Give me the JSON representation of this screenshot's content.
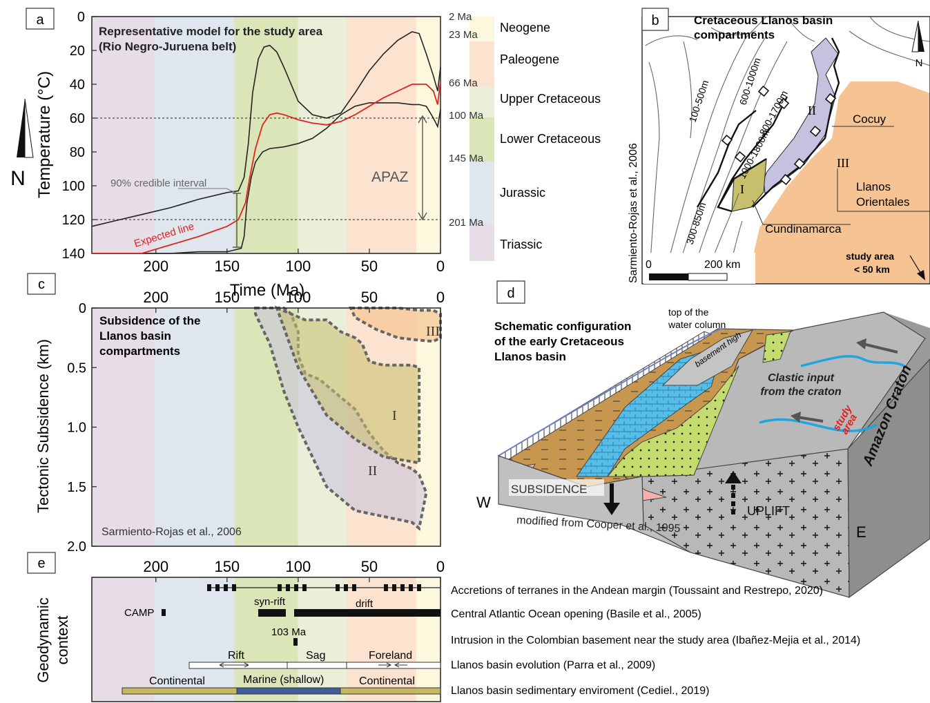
{
  "colors": {
    "triassic": "#e6dde6",
    "jurassic": "#dfe6ee",
    "lower_cretaceous": "#dbe6b8",
    "upper_cretaceous": "#e9efd9",
    "paleogene": "#fbe3cf",
    "neogene": "#fbf8de",
    "expected_line": "#e02222",
    "sandy_orange": "#f6c493",
    "purple_zone": "#c6c1de",
    "olive_zone": "#c8bf6c",
    "continental_bar": "#c7b761",
    "marine_bar": "#3f5f9a",
    "river_blue": "#1fa6e0",
    "block_grey": "#b4b4b4"
  },
  "panel_a": {
    "letter": "a",
    "title": "Representative model for the study area",
    "subtitle": "(Rio Negro-Juruena belt)",
    "ylabel": "Temperature (°C)",
    "xlabel": "Time (Ma)",
    "credible_label": "90% credible interval",
    "expected_label": "Expected line",
    "apaz_label": "APAZ",
    "north_label": "N"
  },
  "timescale": {
    "periods": [
      "Neogene",
      "Paleogene",
      "Upper Cretaceous",
      "Lower Cretaceous",
      "Jurassic",
      "Triassic"
    ],
    "ages": [
      "2 Ma",
      "23 Ma",
      "66 Ma",
      "100 Ma",
      "145 Ma",
      "201 Ma"
    ]
  },
  "panel_b": {
    "letter": "b",
    "title_line1": "Cretaceous Llanos basin",
    "title_line2": "compartments",
    "north_label": "N",
    "depth_labels": [
      "100-500m",
      "600-1000m",
      "800-1700m",
      "1000-1800m",
      "300-850m"
    ],
    "roman_1": "I",
    "roman_2": "II",
    "roman_3": "III",
    "cocuy": "Cocuy",
    "llanos_line1": "Llanos",
    "llanos_line2": "Orientales",
    "cundinamarca": "Cundinamarca",
    "scale_zero": "0",
    "scale_max": "200 km",
    "study_line1": "study area",
    "study_line2": "< 50 km",
    "source": "Sarmiento-Rojas et al., 2006"
  },
  "panel_c": {
    "letter": "c",
    "title_line1": "Subsidence of the",
    "title_line2": "Llanos basin",
    "title_line3": "compartments",
    "ylabel": "Tectonic Subsidence (km)",
    "source": "Sarmiento-Rojas et al., 2006",
    "zone_labels": [
      "I",
      "II",
      "III"
    ]
  },
  "panel_d": {
    "letter": "d",
    "title_line1": "Schematic configuration",
    "title_line2": "of the early Cretaceous",
    "title_line3": "Llanos basin",
    "water_line1": "top of the",
    "water_line2": "water column",
    "basement_high": "basement high",
    "clastic_line1": "Clastic input",
    "clastic_line2": "from the craton",
    "study_line1": "study",
    "study_line2": "area",
    "craton": "Amazon Craton",
    "subsidence": "SUBSIDENCE",
    "uplift": "UPLIFT",
    "west": "W",
    "east": "E",
    "source": "modified from Cooper et al., 1995"
  },
  "panel_e": {
    "letter": "e",
    "ylabel_line1": "Geodynamic",
    "ylabel_line2": "context",
    "camp": "CAMP",
    "synrift": "syn-rift",
    "drift": "drift",
    "age_103": "103 Ma",
    "rift": "Rift",
    "sag": "Sag",
    "foreland": "Foreland",
    "continental": "Continental",
    "marine": "Marine (shallow)",
    "rows": [
      "Accretions of terranes in the Andean margin (Toussaint and Restrepo, 2020)",
      "Central Atlantic Ocean opening (Basile et al., 2005)",
      "Intrusion in the Colombian basement near the study area (Ibañez-Mejia et al., 2014)",
      "Llanos basin evolution (Parra et al., 2009)",
      "Llanos basin sedimentary enviroment (Cediel., 2019)"
    ]
  },
  "chart_data": [
    {
      "type": "line",
      "panel": "a",
      "title": "Representative model for the study area (Rio Negro-Juruena belt)",
      "xlabel": "Time (Ma)",
      "ylabel": "Temperature (°C)",
      "xlim": [
        245,
        0
      ],
      "ylim": [
        140,
        0
      ],
      "x_ticks": [
        200,
        150,
        100,
        50,
        0
      ],
      "y_ticks": [
        0,
        20,
        40,
        60,
        80,
        100,
        120,
        140
      ],
      "apaz_bounds": [
        60,
        120
      ],
      "series": [
        {
          "name": "Expected line",
          "x": [
            245,
            230,
            210,
            190,
            170,
            150,
            142,
            137,
            134,
            130,
            125,
            120,
            115,
            110,
            100,
            90,
            80,
            70,
            60,
            50,
            40,
            30,
            20,
            10,
            5,
            2,
            0
          ],
          "y": [
            149,
            145,
            140,
            135,
            130,
            124,
            120,
            110,
            95,
            78,
            64,
            58,
            57,
            58,
            61,
            63,
            64,
            62,
            58,
            53,
            48,
            44,
            40,
            40,
            44,
            52,
            38
          ]
        },
        {
          "name": "upper bound",
          "x": [
            245,
            230,
            210,
            190,
            170,
            150,
            142,
            138,
            135,
            132,
            128,
            124,
            120,
            115,
            110,
            100,
            90,
            80,
            70,
            60,
            50,
            40,
            30,
            20,
            15,
            10,
            5,
            2,
            0
          ],
          "y": [
            124,
            121,
            117,
            113,
            108,
            104,
            103,
            95,
            75,
            45,
            25,
            18,
            17,
            21,
            30,
            50,
            58,
            60,
            57,
            45,
            32,
            22,
            14,
            9,
            10,
            22,
            35,
            44,
            30
          ]
        },
        {
          "name": "lower bound",
          "x": [
            245,
            230,
            210,
            190,
            170,
            150,
            145,
            140,
            138,
            136,
            133,
            130,
            125,
            120,
            110,
            100,
            90,
            80,
            70,
            60,
            50,
            40,
            30,
            20,
            15,
            10,
            5,
            2,
            0
          ],
          "y": [
            141,
            141,
            140,
            140,
            139,
            139,
            138,
            137,
            130,
            110,
            95,
            86,
            80,
            78,
            77,
            75,
            72,
            66,
            58,
            53,
            51,
            51,
            51,
            52,
            52,
            53,
            60,
            65,
            55
          ]
        }
      ]
    },
    {
      "type": "area",
      "panel": "c",
      "title": "Subsidence of the Llanos basin compartments",
      "ylabel": "Tectonic Subsidence (km)",
      "xlim": [
        245,
        0
      ],
      "ylim": [
        2.0,
        0
      ],
      "x_ticks": [
        200,
        150,
        100,
        50,
        0
      ],
      "y_ticks": [
        0,
        0.5,
        1.0,
        1.5,
        2.0
      ],
      "series": [
        {
          "name": "I",
          "x": [
            115,
            105,
            95,
            80,
            70,
            60,
            55,
            50,
            40,
            30,
            20,
            15,
            15,
            40,
            60,
            70,
            80,
            100
          ],
          "y": [
            0,
            0.05,
            0.1,
            0.1,
            0.2,
            0.25,
            0.3,
            0.45,
            0.48,
            0.48,
            0.48,
            0.5,
            1.3,
            1.25,
            1.1,
            1.0,
            0.9,
            0.5
          ]
        },
        {
          "name": "II",
          "x": [
            130,
            110,
            105,
            100,
            100,
            95,
            85,
            80,
            70,
            60,
            50,
            40,
            30,
            20,
            15,
            10,
            15,
            20,
            40,
            60,
            80,
            100,
            110,
            120,
            130
          ],
          "y": [
            0,
            0,
            0.05,
            0.2,
            0.4,
            0.55,
            0.6,
            0.65,
            0.75,
            0.85,
            1.05,
            1.2,
            1.3,
            1.35,
            1.4,
            1.55,
            1.85,
            1.8,
            1.75,
            1.7,
            1.5,
            1.0,
            0.7,
            0.3,
            0.05
          ]
        },
        {
          "name": "III",
          "x": [
            63,
            55,
            40,
            30,
            15,
            5,
            0,
            0,
            5,
            15,
            30,
            45,
            60
          ],
          "y": [
            0,
            0,
            0,
            0,
            0.02,
            0.02,
            0.05,
            0.25,
            0.28,
            0.27,
            0.25,
            0.18,
            0.08
          ]
        }
      ]
    }
  ]
}
